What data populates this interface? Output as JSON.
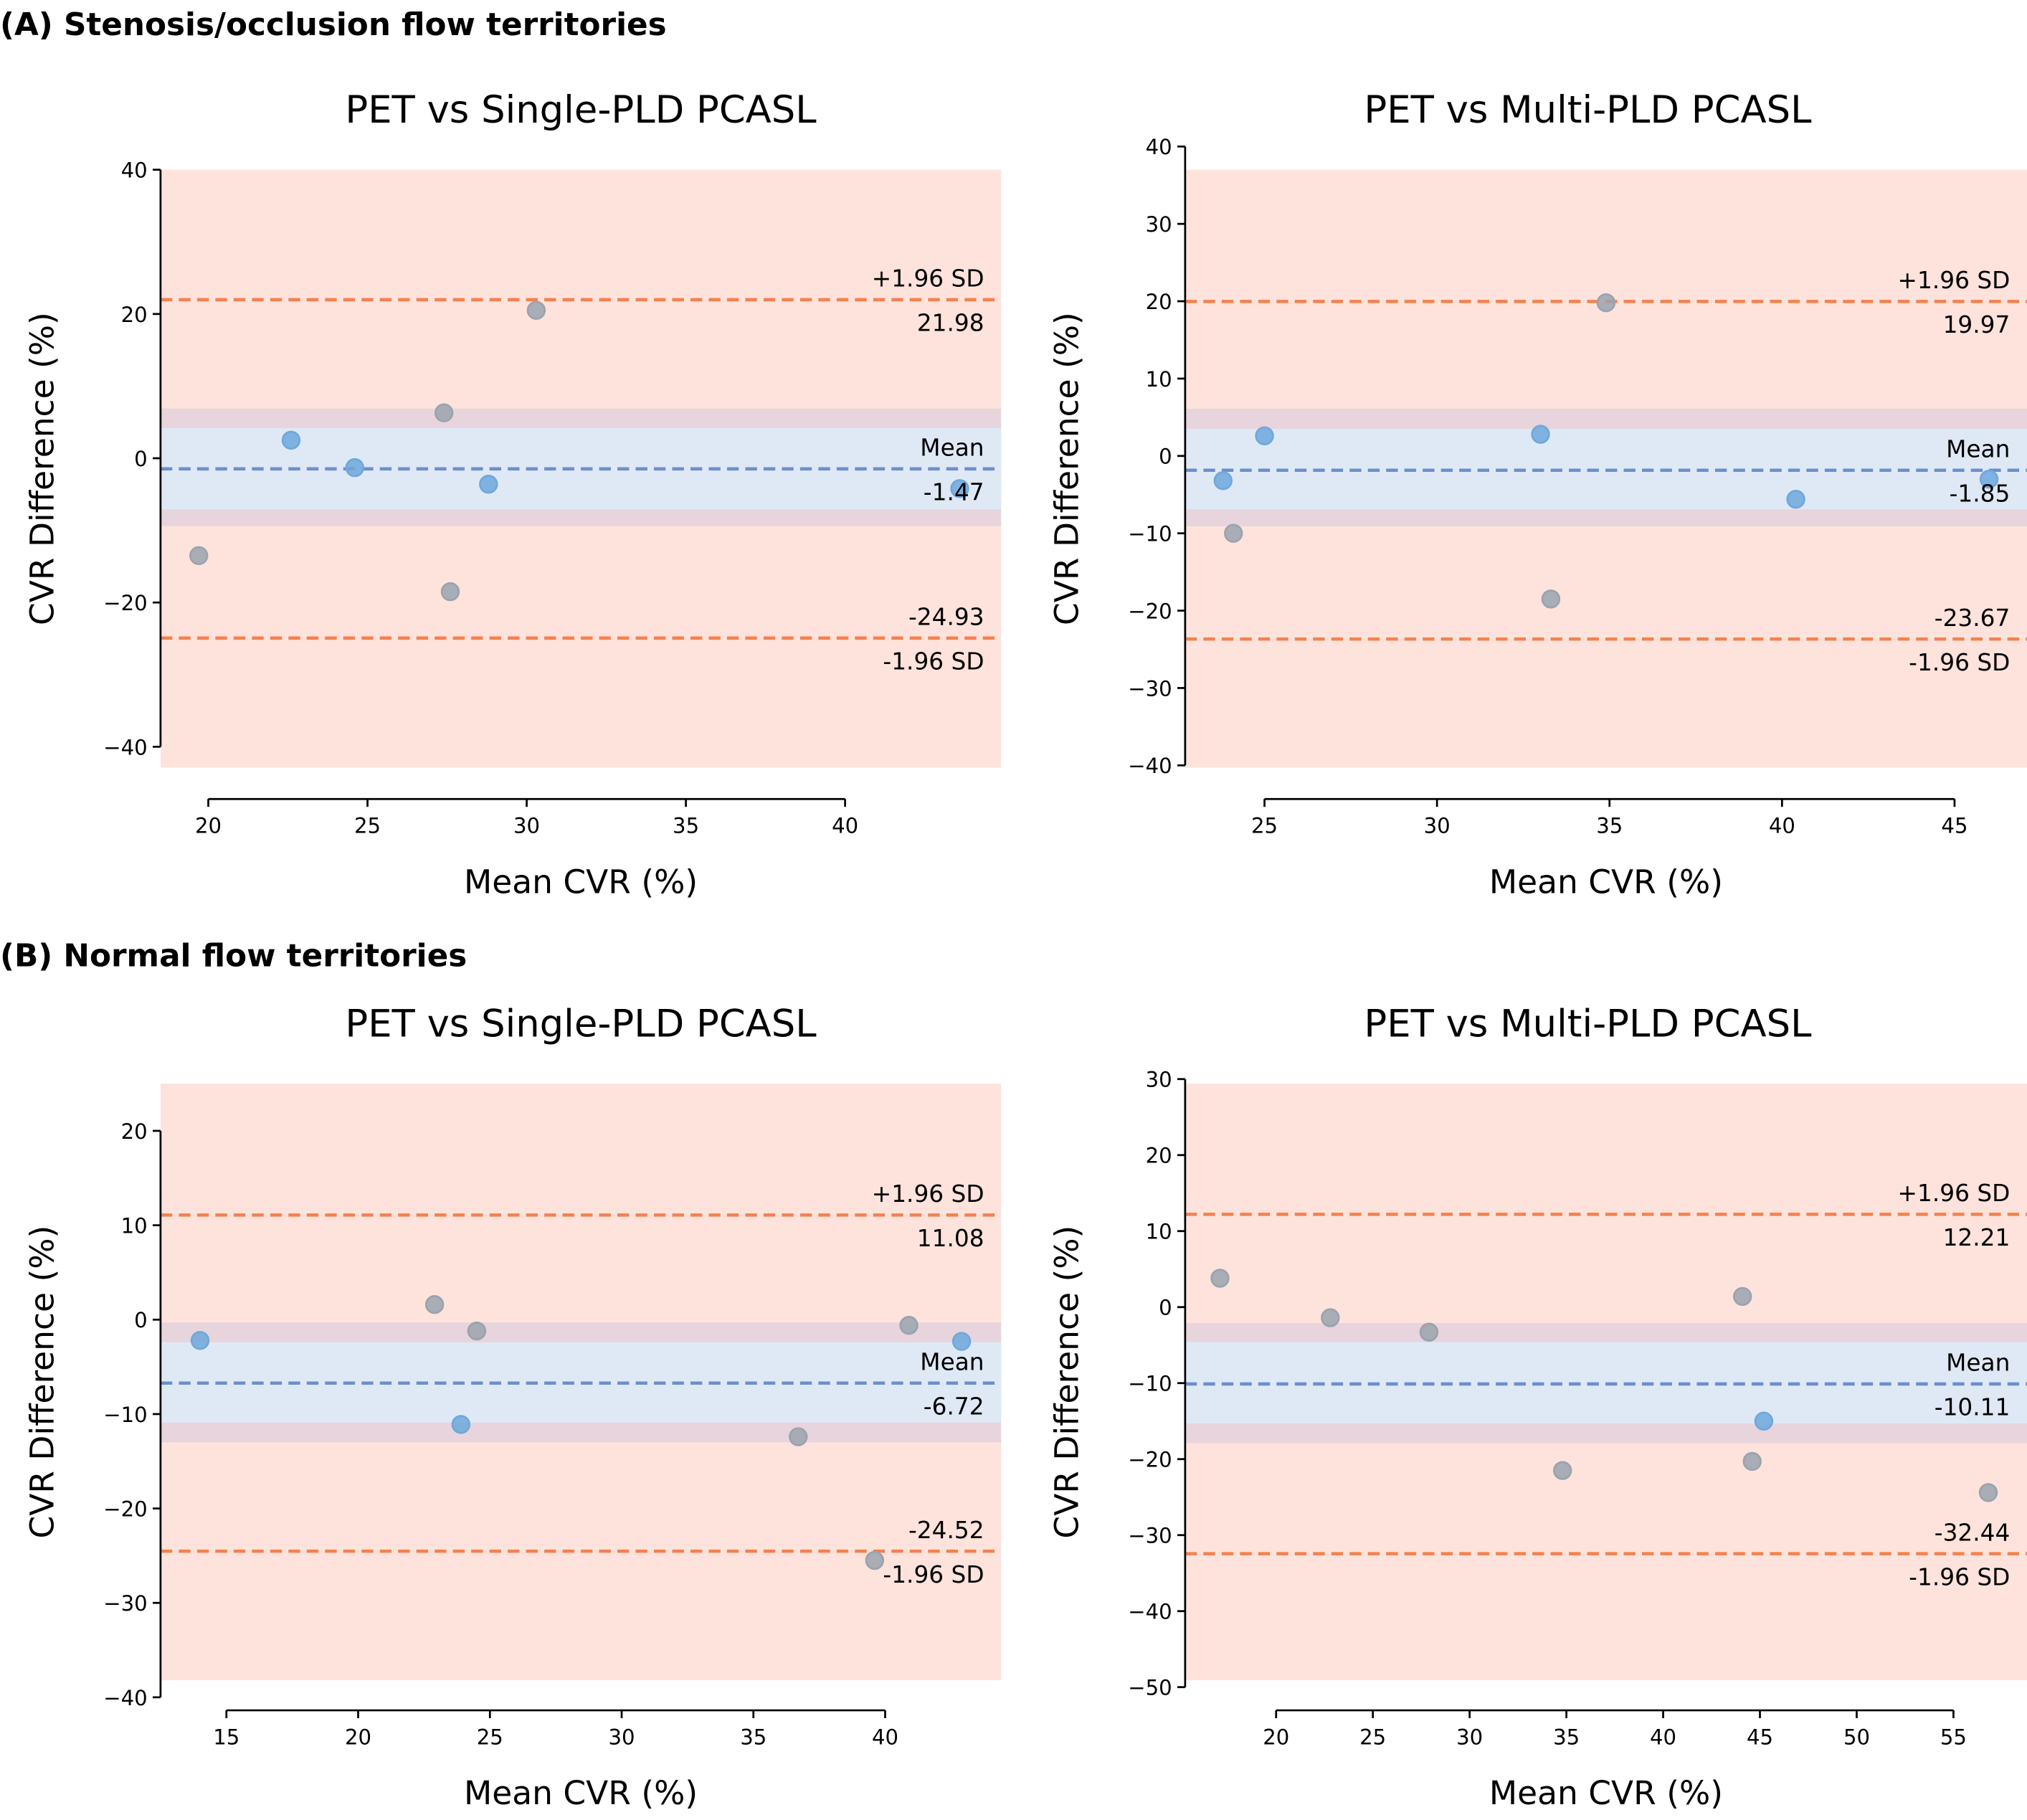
{
  "section_titles": [
    "(A) Stenosis/occlusion flow territories",
    "(B) Normal flow territories"
  ],
  "colors": {
    "outer_region": "#fde3dc",
    "ci_band": "#e8d4dc",
    "mean_band": "#dfe9f6",
    "limit_line": "#f4814f",
    "mean_line": "#6b8fcc",
    "point_blue": "#6fa8dc",
    "point_gray": "#9aa3ae"
  },
  "chart_data": [
    {
      "type": "scatter",
      "section": 0,
      "title": "PET vs Single-PLD PCASL",
      "xlabel": "Mean CVR (%)",
      "ylabel": "CVR Difference (%)",
      "xlim": [
        18.5,
        44.9
      ],
      "ylim": [
        -42.9,
        40.0
      ],
      "xticks": [
        20,
        25,
        30,
        35,
        40
      ],
      "yticks": [
        -40,
        -20,
        0,
        20,
        40
      ],
      "mean": -1.47,
      "upper_loa": 21.98,
      "lower_loa": -24.93,
      "mean_label": "Mean",
      "upper_label": "+1.96 SD",
      "lower_label": "-1.96 SD",
      "ci_band": [
        -9.4,
        6.9
      ],
      "mean_band": [
        -7.1,
        4.2
      ],
      "points": [
        {
          "x": 19.7,
          "y": -13.5,
          "color": "gray"
        },
        {
          "x": 22.6,
          "y": 2.5,
          "color": "blue"
        },
        {
          "x": 24.6,
          "y": -1.3,
          "color": "blue"
        },
        {
          "x": 27.4,
          "y": 6.3,
          "color": "gray"
        },
        {
          "x": 27.6,
          "y": -18.5,
          "color": "gray"
        },
        {
          "x": 28.8,
          "y": -3.6,
          "color": "blue"
        },
        {
          "x": 30.3,
          "y": 20.5,
          "color": "gray"
        },
        {
          "x": 43.6,
          "y": -4.2,
          "color": "blue"
        }
      ]
    },
    {
      "type": "scatter",
      "section": 0,
      "title": "PET vs Multi-PLD PCASL",
      "xlabel": "Mean CVR (%)",
      "ylabel": "CVR Difference (%)",
      "xlim": [
        22.7,
        47.1
      ],
      "ylim": [
        -40.3,
        37.0
      ],
      "xticks": [
        25,
        30,
        35,
        40,
        45
      ],
      "yticks": [
        -40,
        -30,
        -20,
        -10,
        0,
        10,
        20,
        30,
        40
      ],
      "mean": -1.85,
      "upper_loa": 19.97,
      "lower_loa": -23.67,
      "mean_label": "Mean",
      "upper_label": "+1.96 SD",
      "lower_label": "-1.96 SD",
      "ci_band": [
        -9.1,
        6.1
      ],
      "mean_band": [
        -6.9,
        3.5
      ],
      "points": [
        {
          "x": 23.8,
          "y": -3.2,
          "color": "blue"
        },
        {
          "x": 24.1,
          "y": -10.0,
          "color": "gray"
        },
        {
          "x": 25.0,
          "y": 2.6,
          "color": "blue"
        },
        {
          "x": 33.0,
          "y": 2.8,
          "color": "blue"
        },
        {
          "x": 33.3,
          "y": -18.5,
          "color": "gray"
        },
        {
          "x": 34.9,
          "y": 19.8,
          "color": "gray"
        },
        {
          "x": 40.4,
          "y": -5.6,
          "color": "blue"
        },
        {
          "x": 46.0,
          "y": -3.0,
          "color": "blue"
        }
      ]
    },
    {
      "type": "scatter",
      "section": 1,
      "title": "PET vs Single-PLD PCASL",
      "xlabel": "Mean CVR (%)",
      "ylabel": "CVR Difference (%)",
      "xlim": [
        12.5,
        44.4
      ],
      "ylim": [
        -38.2,
        25.0
      ],
      "xticks": [
        15,
        20,
        25,
        30,
        35,
        40
      ],
      "yticks": [
        -40,
        -30,
        -20,
        -10,
        0,
        10,
        20
      ],
      "mean": -6.72,
      "upper_loa": 11.08,
      "lower_loa": -24.52,
      "mean_label": "Mean",
      "upper_label": "+1.96 SD",
      "lower_label": "-1.96 SD",
      "ci_band": [
        -13.0,
        -0.3
      ],
      "mean_band": [
        -10.9,
        -2.4
      ],
      "points": [
        {
          "x": 14.0,
          "y": -2.2,
          "color": "blue"
        },
        {
          "x": 22.9,
          "y": 1.6,
          "color": "gray"
        },
        {
          "x": 24.5,
          "y": -1.2,
          "color": "gray"
        },
        {
          "x": 23.9,
          "y": -11.1,
          "color": "blue"
        },
        {
          "x": 36.7,
          "y": -12.4,
          "color": "gray"
        },
        {
          "x": 39.6,
          "y": -25.5,
          "color": "gray"
        },
        {
          "x": 40.9,
          "y": -0.6,
          "color": "gray"
        },
        {
          "x": 42.9,
          "y": -2.3,
          "color": "blue"
        }
      ]
    },
    {
      "type": "scatter",
      "section": 1,
      "title": "PET vs Multi-PLD PCASL",
      "xlabel": "Mean CVR (%)",
      "ylabel": "CVR Difference (%)",
      "xlim": [
        15.3,
        58.8
      ],
      "ylim": [
        -49.1,
        29.4
      ],
      "xticks": [
        20,
        25,
        30,
        35,
        40,
        45,
        50,
        55
      ],
      "yticks": [
        -50,
        -40,
        -30,
        -20,
        -10,
        0,
        10,
        20,
        30
      ],
      "mean": -10.11,
      "upper_loa": 12.21,
      "lower_loa": -32.44,
      "mean_label": "Mean",
      "upper_label": "+1.96 SD",
      "lower_label": "-1.96 SD",
      "ci_band": [
        -17.9,
        -2.1
      ],
      "mean_band": [
        -15.3,
        -4.6
      ],
      "points": [
        {
          "x": 17.1,
          "y": 3.8,
          "color": "gray"
        },
        {
          "x": 22.8,
          "y": -1.4,
          "color": "gray"
        },
        {
          "x": 27.9,
          "y": -3.3,
          "color": "gray"
        },
        {
          "x": 34.8,
          "y": -21.5,
          "color": "gray"
        },
        {
          "x": 44.1,
          "y": 1.4,
          "color": "gray"
        },
        {
          "x": 44.6,
          "y": -20.3,
          "color": "gray"
        },
        {
          "x": 45.2,
          "y": -15.0,
          "color": "blue"
        },
        {
          "x": 56.8,
          "y": -24.4,
          "color": "gray"
        }
      ]
    }
  ]
}
